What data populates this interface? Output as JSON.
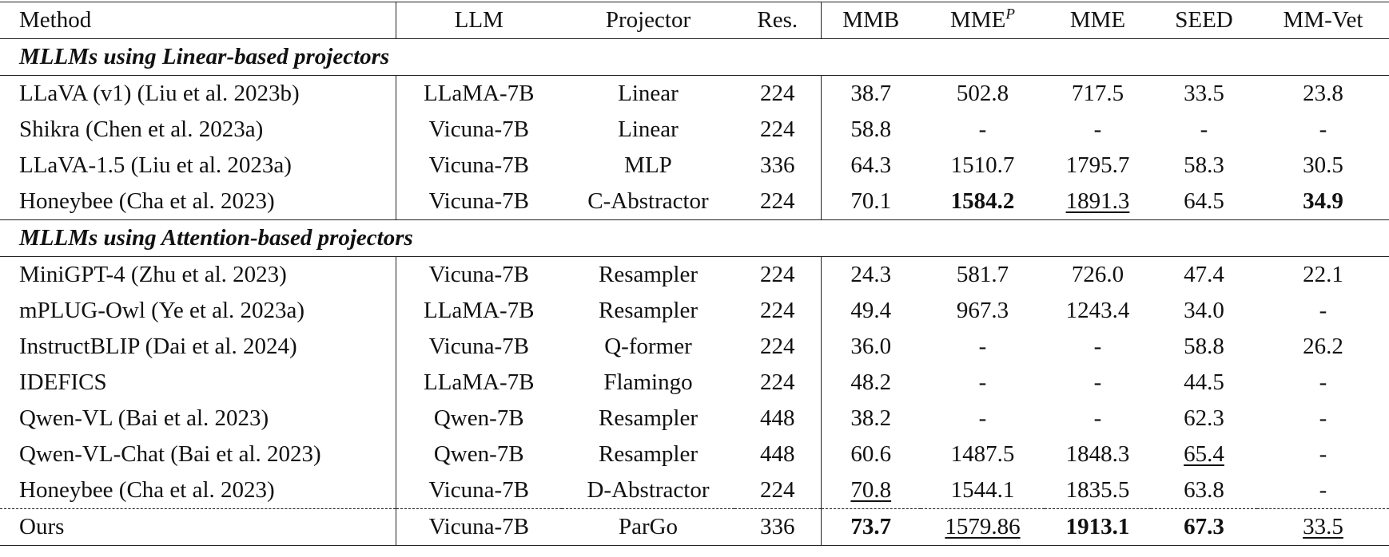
{
  "table": {
    "header": [
      "Method",
      "LLM",
      "Projector",
      "Res.",
      "MMB",
      {
        "text": "MME",
        "sup": "P"
      },
      "MME",
      "SEED",
      "MM-Vet"
    ],
    "sections": [
      {
        "title": "MLLMs using Linear-based projectors",
        "rows": [
          {
            "cells": [
              "LLaVA (v1) (Liu et al. 2023b)",
              "LLaMA-7B",
              "Linear",
              "224",
              "38.7",
              "502.8",
              "717.5",
              "33.5",
              "23.8"
            ]
          },
          {
            "cells": [
              "Shikra (Chen et al. 2023a)",
              "Vicuna-7B",
              "Linear",
              "224",
              "58.8",
              "-",
              "-",
              "-",
              "-"
            ]
          },
          {
            "cells": [
              "LLaVA-1.5 (Liu et al. 2023a)",
              "Vicuna-7B",
              "MLP",
              "336",
              "64.3",
              "1510.7",
              "1795.7",
              "58.3",
              "30.5"
            ]
          },
          {
            "cells": [
              "Honeybee (Cha et al. 2023)",
              "Vicuna-7B",
              "C-Abstractor",
              "224",
              "70.1",
              "1584.2",
              "1891.3",
              "64.5",
              "34.9"
            ],
            "bold": [
              5,
              8
            ],
            "underline": [
              6
            ]
          }
        ]
      },
      {
        "title": "MLLMs using Attention-based projectors",
        "rows": [
          {
            "cells": [
              "MiniGPT-4 (Zhu et al. 2023)",
              "Vicuna-7B",
              "Resampler",
              "224",
              "24.3",
              "581.7",
              "726.0",
              "47.4",
              "22.1"
            ]
          },
          {
            "cells": [
              "mPLUG-Owl (Ye et al. 2023a)",
              "LLaMA-7B",
              "Resampler",
              "224",
              "49.4",
              "967.3",
              "1243.4",
              "34.0",
              "-"
            ]
          },
          {
            "cells": [
              "InstructBLIP (Dai et al. 2024)",
              "Vicuna-7B",
              "Q-former",
              "224",
              "36.0",
              "-",
              "-",
              "58.8",
              "26.2"
            ]
          },
          {
            "cells": [
              "IDEFICS",
              "LLaMA-7B",
              "Flamingo",
              "224",
              "48.2",
              "-",
              "-",
              "44.5",
              "-"
            ]
          },
          {
            "cells": [
              "Qwen-VL (Bai et al. 2023)",
              "Qwen-7B",
              "Resampler",
              "448",
              "38.2",
              "-",
              "-",
              "62.3",
              "-"
            ]
          },
          {
            "cells": [
              "Qwen-VL-Chat (Bai et al. 2023)",
              "Qwen-7B",
              "Resampler",
              "448",
              "60.6",
              "1487.5",
              "1848.3",
              "65.4",
              "-"
            ],
            "underline": [
              7
            ]
          },
          {
            "cells": [
              "Honeybee (Cha et al. 2023)",
              "Vicuna-7B",
              "D-Abstractor",
              "224",
              "70.8",
              "1544.1",
              "1835.5",
              "63.8",
              "-"
            ],
            "underline": [
              4
            ]
          }
        ]
      }
    ],
    "final_row": {
      "cells": [
        "Ours",
        "Vicuna-7B",
        "ParGo",
        "336",
        "73.7",
        "1579.86",
        "1913.1",
        "67.3",
        "33.5"
      ],
      "bold": [
        4,
        6,
        7
      ],
      "underline": [
        5,
        8
      ]
    }
  }
}
